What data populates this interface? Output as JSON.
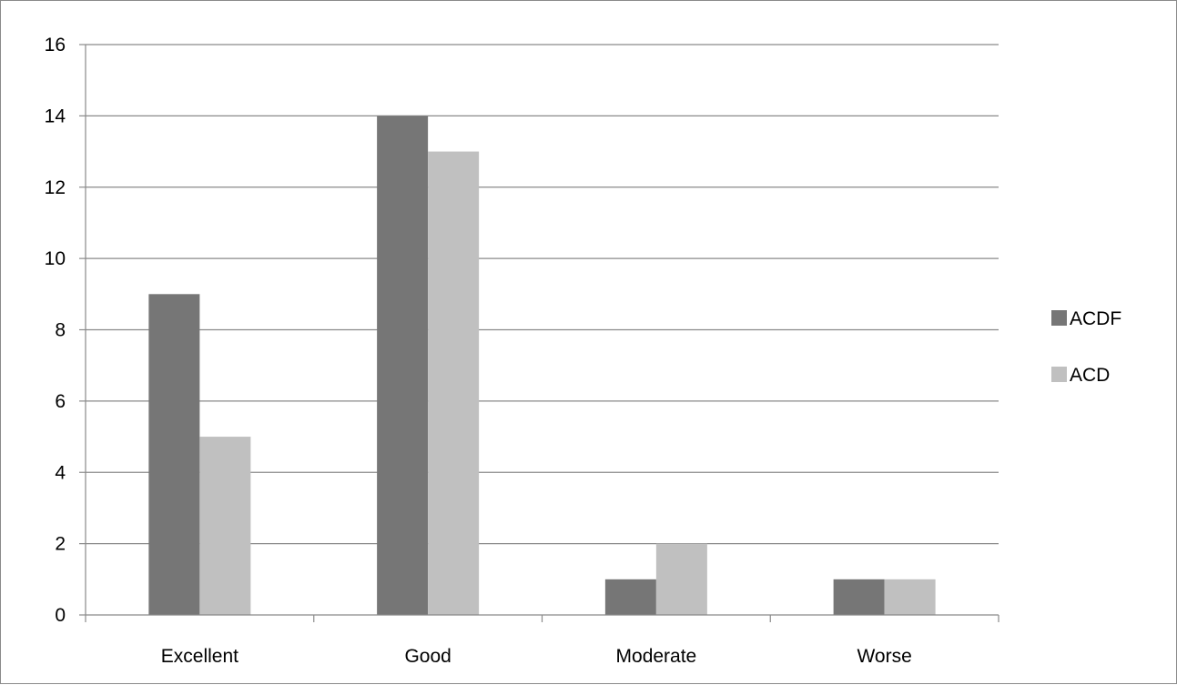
{
  "chart_data": {
    "type": "bar",
    "title": "",
    "xlabel": "",
    "ylabel": "",
    "categories": [
      "Excellent",
      "Good",
      "Moderate",
      "Worse"
    ],
    "series": [
      {
        "name": "ACDF",
        "values": [
          9,
          14,
          1,
          1
        ],
        "color": "#767676"
      },
      {
        "name": "ACD",
        "values": [
          5,
          13,
          2,
          1
        ],
        "color": "#c0c0c0"
      }
    ],
    "ylim": [
      0,
      16
    ],
    "yticks": [
      0,
      2,
      4,
      6,
      8,
      10,
      12,
      14,
      16
    ],
    "grid": true,
    "legend_position": "right"
  }
}
